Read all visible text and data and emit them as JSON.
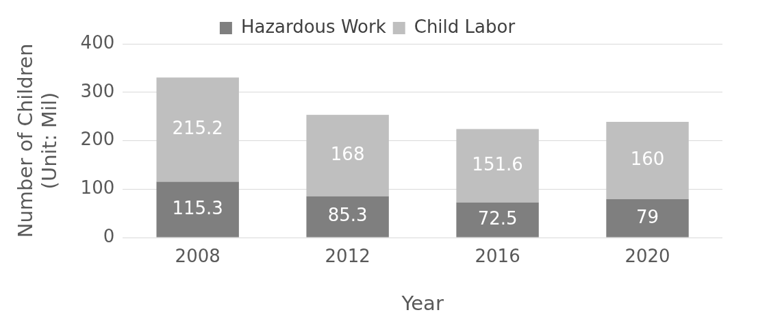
{
  "chart_data": {
    "type": "bar",
    "stacked": true,
    "xlabel": "Year",
    "ylabel": "Number of Children\n(Unit: Mil)",
    "categories": [
      "2008",
      "2012",
      "2016",
      "2020"
    ],
    "series": [
      {
        "name": "Hazardous Work",
        "color": "#7f7f7f",
        "values": [
          115.3,
          85.3,
          72.5,
          79
        ]
      },
      {
        "name": "Child Labor",
        "color": "#bfbfbf",
        "values": [
          215.2,
          168,
          151.6,
          160
        ]
      }
    ],
    "ylim": [
      0,
      400
    ],
    "yticks": [
      0,
      100,
      200,
      300,
      400
    ],
    "grid": "y",
    "legend": "top",
    "data_labels": true
  }
}
